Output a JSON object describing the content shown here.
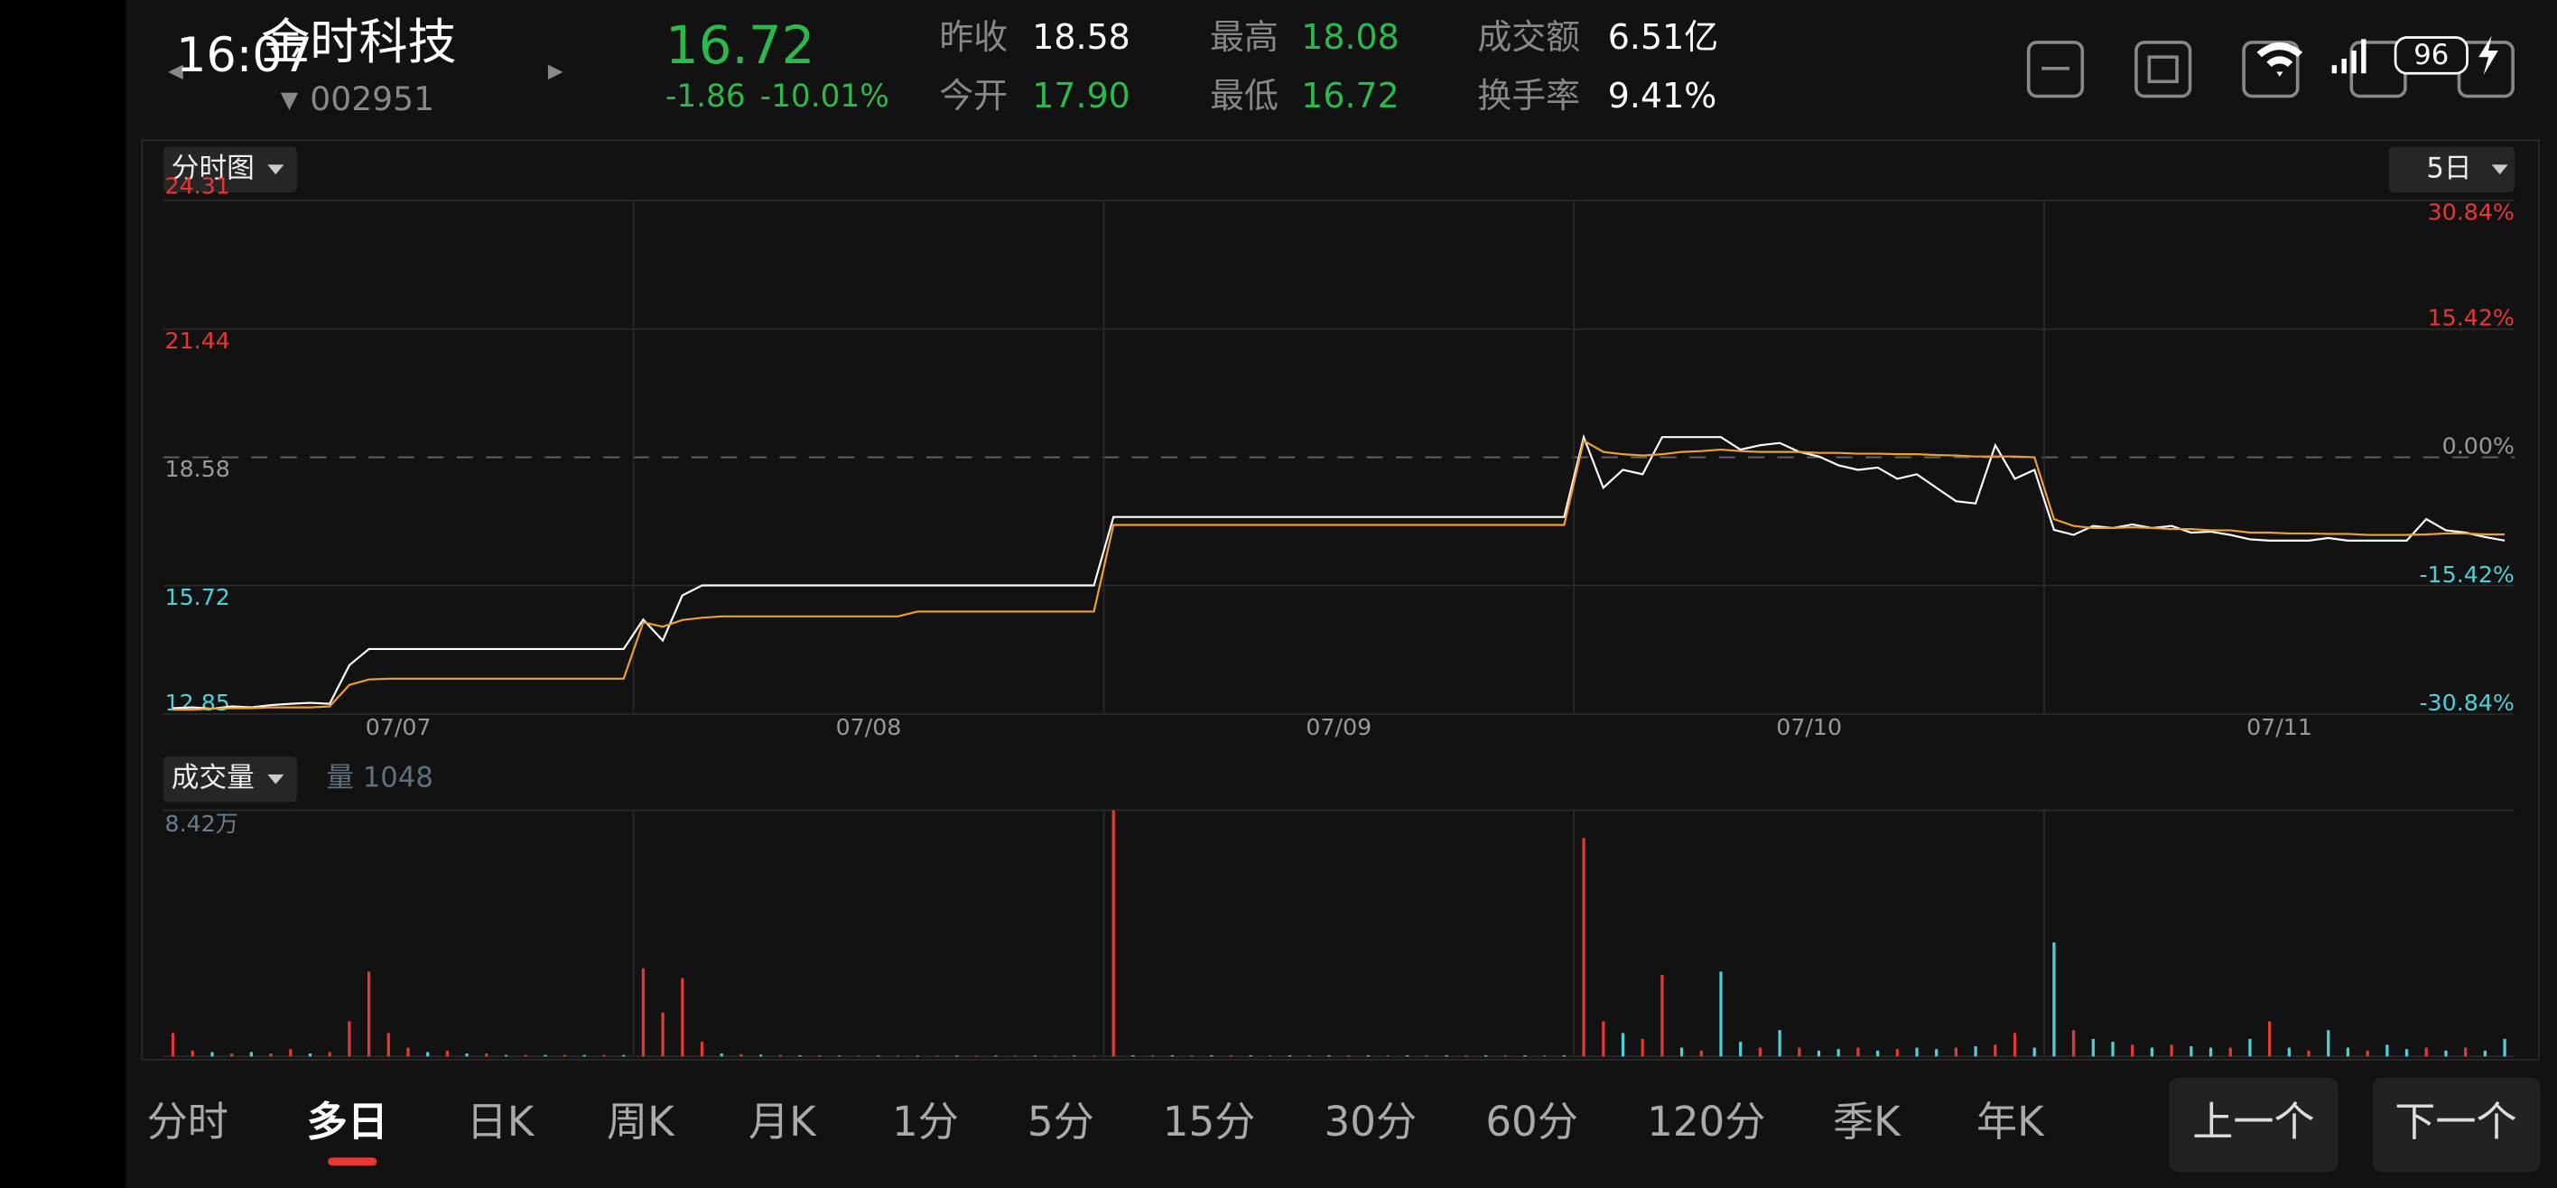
{
  "status_bar": {
    "time": "16:07",
    "battery": "96"
  },
  "stock": {
    "name": "金时科技",
    "code": "002951",
    "price": "16.72",
    "change": "-1.86",
    "change_pct": "-10.01%"
  },
  "quotes": [
    {
      "label": "昨收",
      "value": "18.58",
      "color": "#ffffff"
    },
    {
      "label": "今开",
      "value": "17.90",
      "color": "#2db84d"
    },
    {
      "label": "最高",
      "value": "18.08",
      "color": "#2db84d"
    },
    {
      "label": "最低",
      "value": "16.72",
      "color": "#2db84d"
    },
    {
      "label": "成交额",
      "value": "6.51亿",
      "color": "#ffffff"
    },
    {
      "label": "换手率",
      "value": "9.41%",
      "color": "#ffffff"
    }
  ],
  "price_chart": {
    "type": "line",
    "mode_button": "分时图",
    "period_button": "5日",
    "dates": [
      "07/07",
      "07/08",
      "07/09",
      "07/10",
      "07/11"
    ],
    "ylim": [
      12.85,
      24.31
    ],
    "yticks": [
      12.85,
      15.72,
      18.58,
      21.44,
      24.31
    ],
    "y2lim": [
      -30.84,
      30.84
    ],
    "y2ticks": [
      {
        "value": -30.84,
        "label": "-30.84%"
      },
      {
        "value": -15.42,
        "label": "-15.42%"
      },
      {
        "value": 0,
        "label": "0.00%"
      },
      {
        "value": 15.42,
        "label": "15.42%"
      },
      {
        "value": 30.84,
        "label": "30.84%"
      }
    ],
    "reference_line": 18.58,
    "series": [
      {
        "color": "#ffffff",
        "values": [
          12.98,
          13.0,
          12.97,
          13.02,
          13.0,
          13.05,
          13.08,
          13.1,
          13.08,
          13.94,
          14.3,
          14.3,
          14.3,
          14.3,
          14.3,
          14.3,
          14.3,
          14.3,
          14.3,
          14.3,
          14.3,
          14.3,
          14.3,
          14.3,
          14.96,
          14.49,
          15.5,
          15.72,
          15.72,
          15.72,
          15.72,
          15.72,
          15.72,
          15.72,
          15.72,
          15.72,
          15.72,
          15.72,
          15.72,
          15.72,
          15.72,
          15.72,
          15.72,
          15.72,
          15.72,
          15.72,
          15.72,
          15.72,
          17.25,
          17.25,
          17.25,
          17.25,
          17.25,
          17.25,
          17.25,
          17.25,
          17.25,
          17.25,
          17.25,
          17.25,
          17.25,
          17.25,
          17.25,
          17.25,
          17.25,
          17.25,
          17.25,
          17.25,
          17.25,
          17.25,
          17.25,
          17.25,
          19.03,
          17.9,
          18.3,
          18.2,
          19.03,
          19.03,
          19.03,
          19.03,
          18.75,
          18.85,
          18.9,
          18.7,
          18.6,
          18.4,
          18.3,
          18.35,
          18.1,
          18.2,
          17.9,
          17.6,
          17.55,
          18.85,
          18.1,
          18.3,
          16.96,
          16.85,
          17.05,
          17.0,
          17.08,
          17.0,
          17.05,
          16.9,
          16.92,
          16.85,
          16.75,
          16.72,
          16.72,
          16.72,
          16.78,
          16.72,
          16.72,
          16.72,
          16.72,
          17.2,
          16.95,
          16.9,
          16.8,
          16.72
        ]
      },
      {
        "color": "#f0a030",
        "values": [
          12.95,
          12.95,
          12.97,
          12.98,
          12.98,
          13.0,
          13.0,
          13.0,
          13.02,
          13.5,
          13.62,
          13.64,
          13.64,
          13.64,
          13.64,
          13.64,
          13.64,
          13.64,
          13.64,
          13.64,
          13.64,
          13.64,
          13.64,
          13.64,
          14.9,
          14.8,
          14.95,
          15.0,
          15.03,
          15.03,
          15.03,
          15.03,
          15.03,
          15.03,
          15.03,
          15.03,
          15.03,
          15.03,
          15.14,
          15.14,
          15.14,
          15.14,
          15.14,
          15.14,
          15.14,
          15.14,
          15.14,
          15.14,
          17.07,
          17.07,
          17.07,
          17.07,
          17.07,
          17.07,
          17.07,
          17.07,
          17.07,
          17.07,
          17.07,
          17.07,
          17.07,
          17.07,
          17.07,
          17.07,
          17.07,
          17.07,
          17.07,
          17.07,
          17.07,
          17.07,
          17.07,
          17.07,
          18.95,
          18.7,
          18.65,
          18.62,
          18.65,
          18.7,
          18.72,
          18.75,
          18.72,
          18.7,
          18.7,
          18.7,
          18.68,
          18.68,
          18.66,
          18.66,
          18.65,
          18.65,
          18.63,
          18.62,
          18.6,
          18.6,
          18.6,
          18.58,
          17.2,
          17.05,
          17.0,
          17.0,
          17.02,
          17.0,
          16.98,
          16.98,
          16.95,
          16.95,
          16.9,
          16.9,
          16.88,
          16.88,
          16.87,
          16.87,
          16.85,
          16.85,
          16.85,
          16.86,
          16.88,
          16.88,
          16.86,
          16.86
        ]
      }
    ]
  },
  "volume_chart": {
    "type": "bar",
    "button": "成交量",
    "volume_label": "量 1048",
    "ylim": [
      0,
      84200
    ],
    "yticks": [
      {
        "value": 84200,
        "label": "8.42万"
      }
    ],
    "colors": {
      "up": "#e53935",
      "down": "#4dd0d8"
    },
    "values": [
      8000,
      2000,
      1500,
      1000,
      1500,
      1000,
      2500,
      1000,
      1500,
      12000,
      29000,
      8000,
      3000,
      1500,
      2000,
      1000,
      1000,
      500,
      500,
      500,
      500,
      500,
      500,
      500,
      30100,
      15000,
      26800,
      5000,
      1000,
      800,
      600,
      500,
      400,
      400,
      300,
      300,
      300,
      300,
      300,
      300,
      300,
      300,
      300,
      300,
      300,
      300,
      300,
      300,
      84200,
      400,
      400,
      400,
      400,
      400,
      400,
      400,
      400,
      400,
      400,
      400,
      400,
      400,
      400,
      400,
      400,
      400,
      400,
      400,
      400,
      400,
      400,
      400,
      74700,
      12000,
      8000,
      6000,
      27900,
      3000,
      2000,
      29000,
      5000,
      3000,
      9000,
      3000,
      2000,
      2500,
      3000,
      2000,
      2500,
      3000,
      2500,
      3000,
      3500,
      4000,
      8000,
      3000,
      39000,
      9000,
      6000,
      5000,
      4000,
      3000,
      4000,
      3500,
      3000,
      3000,
      6000,
      12000,
      3000,
      2000,
      9000,
      3000,
      2000,
      4000,
      2500,
      3000,
      2000,
      3000,
      2000,
      6000
    ],
    "directions": [
      "up",
      "up",
      "down",
      "up",
      "down",
      "up",
      "up",
      "down",
      "up",
      "up",
      "up",
      "up",
      "up",
      "down",
      "up",
      "down",
      "up",
      "down",
      "up",
      "down",
      "up",
      "down",
      "up",
      "down",
      "up",
      "up",
      "up",
      "up",
      "down",
      "up",
      "down",
      "up",
      "down",
      "up",
      "down",
      "up",
      "down",
      "up",
      "down",
      "up",
      "down",
      "up",
      "down",
      "up",
      "down",
      "up",
      "down",
      "up",
      "up",
      "down",
      "up",
      "down",
      "up",
      "down",
      "up",
      "down",
      "up",
      "down",
      "up",
      "down",
      "up",
      "down",
      "up",
      "down",
      "up",
      "down",
      "up",
      "down",
      "up",
      "down",
      "up",
      "down",
      "up",
      "up",
      "down",
      "up",
      "up",
      "down",
      "up",
      "down",
      "down",
      "up",
      "down",
      "up",
      "down",
      "down",
      "up",
      "down",
      "up",
      "down",
      "down",
      "up",
      "down",
      "up",
      "up",
      "down",
      "down",
      "up",
      "down",
      "down",
      "up",
      "down",
      "up",
      "down",
      "down",
      "up",
      "down",
      "up",
      "down",
      "up",
      "down",
      "down",
      "up",
      "down",
      "down",
      "up",
      "down",
      "up",
      "down",
      "down"
    ]
  },
  "tabs": [
    "分时",
    "多日",
    "日K",
    "周K",
    "月K",
    "1分",
    "5分",
    "15分",
    "30分",
    "60分",
    "120分",
    "季K",
    "年K"
  ],
  "active_tab": 1,
  "buttons": [
    "上一个",
    "下一个"
  ]
}
